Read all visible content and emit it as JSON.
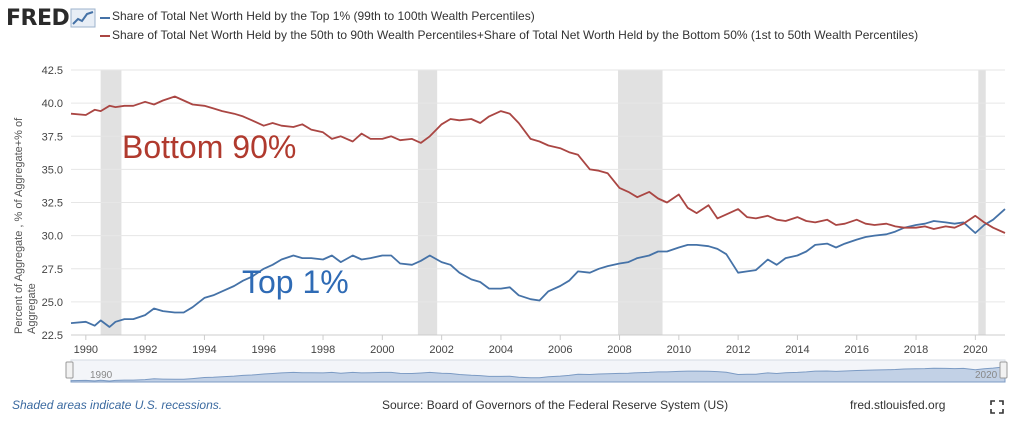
{
  "logo": {
    "text": "FRED"
  },
  "legend": [
    {
      "label": "Share of Total Net Worth Held by the Top 1% (99th to 100th Wealth Percentiles)",
      "color": "#4572a7"
    },
    {
      "label": "Share of Total Net Worth Held by the 50th to 90th Wealth Percentiles+Share of Total Net Worth Held by the Bottom 50% (1st to 50th Wealth Percentiles)",
      "color": "#aa4643"
    }
  ],
  "chart_data": {
    "type": "line",
    "title": "",
    "ylabel": "Percent of Aggregate , % of Aggregate+% of Aggregate",
    "xlabel": "",
    "xlim": [
      1989.5,
      2021.0
    ],
    "ylim": [
      22.5,
      42.5
    ],
    "y_ticks": [
      "22.5",
      "25.0",
      "27.5",
      "30.0",
      "32.5",
      "35.0",
      "37.5",
      "40.0",
      "42.5"
    ],
    "x_ticks": [
      "1990",
      "1992",
      "1994",
      "1996",
      "1998",
      "2000",
      "2002",
      "2004",
      "2006",
      "2008",
      "2010",
      "2012",
      "2014",
      "2016",
      "2018",
      "2020"
    ],
    "recessions": [
      [
        1990.5,
        1991.2
      ],
      [
        2001.2,
        2001.85
      ],
      [
        2007.95,
        2009.45
      ],
      [
        2020.1,
        2020.35
      ]
    ],
    "series": [
      {
        "name": "Share of Total Net Worth Held by the Top 1% (99th to 100th Wealth Percentiles)",
        "color": "#4572a7",
        "points": [
          [
            1989.5,
            23.4
          ],
          [
            1990.0,
            23.5
          ],
          [
            1990.3,
            23.2
          ],
          [
            1990.5,
            23.6
          ],
          [
            1990.8,
            23.1
          ],
          [
            1991.0,
            23.5
          ],
          [
            1991.3,
            23.7
          ],
          [
            1991.6,
            23.7
          ],
          [
            1992.0,
            24.0
          ],
          [
            1992.3,
            24.5
          ],
          [
            1992.6,
            24.3
          ],
          [
            1993.0,
            24.2
          ],
          [
            1993.3,
            24.2
          ],
          [
            1993.6,
            24.6
          ],
          [
            1994.0,
            25.3
          ],
          [
            1994.3,
            25.5
          ],
          [
            1994.6,
            25.8
          ],
          [
            1995.0,
            26.2
          ],
          [
            1995.3,
            26.6
          ],
          [
            1995.6,
            26.9
          ],
          [
            1996.0,
            27.5
          ],
          [
            1996.3,
            27.8
          ],
          [
            1996.6,
            28.2
          ],
          [
            1997.0,
            28.5
          ],
          [
            1997.3,
            28.3
          ],
          [
            1997.6,
            28.3
          ],
          [
            1998.0,
            28.2
          ],
          [
            1998.3,
            28.5
          ],
          [
            1998.6,
            28.0
          ],
          [
            1999.0,
            28.5
          ],
          [
            1999.3,
            28.2
          ],
          [
            1999.6,
            28.3
          ],
          [
            2000.0,
            28.5
          ],
          [
            2000.3,
            28.5
          ],
          [
            2000.6,
            27.9
          ],
          [
            2001.0,
            27.8
          ],
          [
            2001.3,
            28.1
          ],
          [
            2001.6,
            28.5
          ],
          [
            2002.0,
            28.0
          ],
          [
            2002.3,
            27.8
          ],
          [
            2002.6,
            27.2
          ],
          [
            2003.0,
            26.7
          ],
          [
            2003.3,
            26.5
          ],
          [
            2003.6,
            26.0
          ],
          [
            2004.0,
            26.0
          ],
          [
            2004.3,
            26.1
          ],
          [
            2004.6,
            25.5
          ],
          [
            2005.0,
            25.2
          ],
          [
            2005.3,
            25.1
          ],
          [
            2005.6,
            25.8
          ],
          [
            2006.0,
            26.2
          ],
          [
            2006.3,
            26.6
          ],
          [
            2006.6,
            27.3
          ],
          [
            2007.0,
            27.2
          ],
          [
            2007.3,
            27.5
          ],
          [
            2007.6,
            27.7
          ],
          [
            2008.0,
            27.9
          ],
          [
            2008.3,
            28.0
          ],
          [
            2008.6,
            28.3
          ],
          [
            2009.0,
            28.5
          ],
          [
            2009.3,
            28.8
          ],
          [
            2009.6,
            28.8
          ],
          [
            2010.0,
            29.1
          ],
          [
            2010.3,
            29.3
          ],
          [
            2010.6,
            29.3
          ],
          [
            2011.0,
            29.2
          ],
          [
            2011.3,
            29.0
          ],
          [
            2011.6,
            28.6
          ],
          [
            2012.0,
            27.2
          ],
          [
            2012.3,
            27.3
          ],
          [
            2012.6,
            27.4
          ],
          [
            2013.0,
            28.2
          ],
          [
            2013.3,
            27.8
          ],
          [
            2013.6,
            28.3
          ],
          [
            2014.0,
            28.5
          ],
          [
            2014.3,
            28.8
          ],
          [
            2014.6,
            29.3
          ],
          [
            2015.0,
            29.4
          ],
          [
            2015.3,
            29.1
          ],
          [
            2015.6,
            29.4
          ],
          [
            2016.0,
            29.7
          ],
          [
            2016.3,
            29.9
          ],
          [
            2016.6,
            30.0
          ],
          [
            2017.0,
            30.1
          ],
          [
            2017.3,
            30.3
          ],
          [
            2017.6,
            30.6
          ],
          [
            2018.0,
            30.8
          ],
          [
            2018.3,
            30.9
          ],
          [
            2018.6,
            31.1
          ],
          [
            2019.0,
            31.0
          ],
          [
            2019.3,
            30.9
          ],
          [
            2019.6,
            31.0
          ],
          [
            2020.0,
            30.2
          ],
          [
            2020.3,
            30.8
          ],
          [
            2020.6,
            31.2
          ],
          [
            2021.0,
            32.0
          ]
        ]
      },
      {
        "name": "Share of Total Net Worth Held by the 50th to 90th Wealth Percentiles+Share of Total Net Worth Held by the Bottom 50% (1st to 50th Wealth Percentiles)",
        "color": "#aa4643",
        "points": [
          [
            1989.5,
            39.2
          ],
          [
            1990.0,
            39.1
          ],
          [
            1990.3,
            39.5
          ],
          [
            1990.5,
            39.4
          ],
          [
            1990.8,
            39.8
          ],
          [
            1991.0,
            39.7
          ],
          [
            1991.3,
            39.8
          ],
          [
            1991.6,
            39.8
          ],
          [
            1992.0,
            40.1
          ],
          [
            1992.3,
            39.9
          ],
          [
            1992.6,
            40.2
          ],
          [
            1993.0,
            40.5
          ],
          [
            1993.3,
            40.2
          ],
          [
            1993.6,
            39.9
          ],
          [
            1994.0,
            39.8
          ],
          [
            1994.3,
            39.6
          ],
          [
            1994.6,
            39.4
          ],
          [
            1995.0,
            39.2
          ],
          [
            1995.3,
            39.0
          ],
          [
            1995.6,
            38.7
          ],
          [
            1996.0,
            38.3
          ],
          [
            1996.3,
            38.5
          ],
          [
            1996.6,
            38.3
          ],
          [
            1997.0,
            38.2
          ],
          [
            1997.3,
            38.4
          ],
          [
            1997.6,
            38.0
          ],
          [
            1998.0,
            37.8
          ],
          [
            1998.3,
            37.3
          ],
          [
            1998.6,
            37.5
          ],
          [
            1999.0,
            37.1
          ],
          [
            1999.3,
            37.7
          ],
          [
            1999.6,
            37.3
          ],
          [
            2000.0,
            37.3
          ],
          [
            2000.3,
            37.5
          ],
          [
            2000.6,
            37.2
          ],
          [
            2001.0,
            37.3
          ],
          [
            2001.3,
            37.0
          ],
          [
            2001.6,
            37.5
          ],
          [
            2002.0,
            38.4
          ],
          [
            2002.3,
            38.8
          ],
          [
            2002.6,
            38.7
          ],
          [
            2003.0,
            38.8
          ],
          [
            2003.3,
            38.5
          ],
          [
            2003.6,
            39.0
          ],
          [
            2004.0,
            39.4
          ],
          [
            2004.3,
            39.2
          ],
          [
            2004.6,
            38.5
          ],
          [
            2005.0,
            37.3
          ],
          [
            2005.3,
            37.1
          ],
          [
            2005.6,
            36.8
          ],
          [
            2006.0,
            36.6
          ],
          [
            2006.3,
            36.3
          ],
          [
            2006.6,
            36.1
          ],
          [
            2007.0,
            35.0
          ],
          [
            2007.3,
            34.9
          ],
          [
            2007.6,
            34.7
          ],
          [
            2008.0,
            33.6
          ],
          [
            2008.3,
            33.3
          ],
          [
            2008.6,
            32.9
          ],
          [
            2009.0,
            33.3
          ],
          [
            2009.3,
            32.8
          ],
          [
            2009.6,
            32.5
          ],
          [
            2010.0,
            33.1
          ],
          [
            2010.3,
            32.1
          ],
          [
            2010.6,
            31.7
          ],
          [
            2011.0,
            32.3
          ],
          [
            2011.3,
            31.3
          ],
          [
            2011.6,
            31.6
          ],
          [
            2012.0,
            32.0
          ],
          [
            2012.3,
            31.4
          ],
          [
            2012.6,
            31.3
          ],
          [
            2013.0,
            31.5
          ],
          [
            2013.3,
            31.2
          ],
          [
            2013.6,
            31.1
          ],
          [
            2014.0,
            31.4
          ],
          [
            2014.3,
            31.1
          ],
          [
            2014.6,
            31.0
          ],
          [
            2015.0,
            31.2
          ],
          [
            2015.3,
            30.8
          ],
          [
            2015.6,
            30.9
          ],
          [
            2016.0,
            31.2
          ],
          [
            2016.3,
            30.9
          ],
          [
            2016.6,
            30.8
          ],
          [
            2017.0,
            30.9
          ],
          [
            2017.3,
            30.7
          ],
          [
            2017.6,
            30.6
          ],
          [
            2018.0,
            30.6
          ],
          [
            2018.3,
            30.7
          ],
          [
            2018.6,
            30.5
          ],
          [
            2019.0,
            30.7
          ],
          [
            2019.3,
            30.6
          ],
          [
            2019.6,
            30.9
          ],
          [
            2020.0,
            31.5
          ],
          [
            2020.3,
            31.0
          ],
          [
            2020.6,
            30.6
          ],
          [
            2021.0,
            30.2
          ]
        ]
      }
    ],
    "annotations": [
      {
        "text": "Bottom 90%",
        "color": "#b03a2e"
      },
      {
        "text": "Top 1%",
        "color": "#2f6bb5"
      }
    ],
    "navigator": {
      "labels": [
        "1990",
        "2020"
      ]
    }
  },
  "footer": {
    "note": "Shaded areas indicate U.S. recessions.",
    "source": "Source: Board of Governors of the Federal Reserve System (US)",
    "site": "fred.stlouisfed.org"
  }
}
